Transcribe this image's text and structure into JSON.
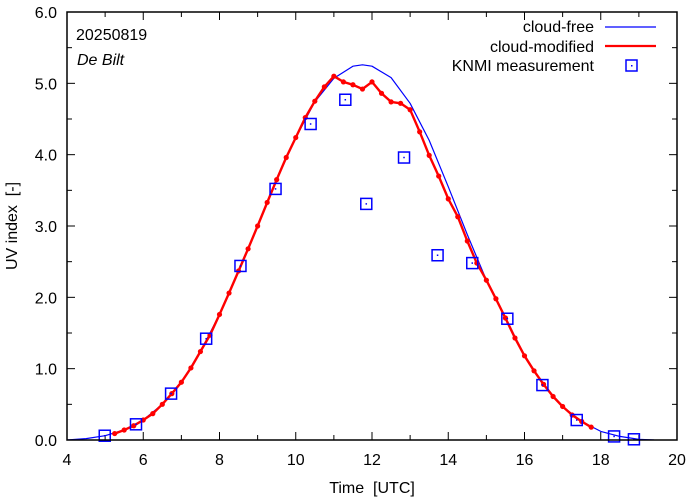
{
  "chart_data": {
    "type": "line",
    "title": "",
    "annotations": [
      "20250819",
      "De Bilt"
    ],
    "xlabel": "Time  [UTC]",
    "ylabel": "UV index  [-]",
    "xlim": [
      4,
      20
    ],
    "ylim": [
      0,
      6
    ],
    "xticks": [
      4,
      6,
      8,
      10,
      12,
      14,
      16,
      18,
      20
    ],
    "xtick_labels": [
      "4",
      "6",
      "8",
      "10",
      "12",
      "14",
      "16",
      "18",
      "20"
    ],
    "yticks": [
      0,
      1,
      2,
      3,
      4,
      5,
      6
    ],
    "ytick_labels": [
      "0.0",
      "1.0",
      "2.0",
      "3.0",
      "4.0",
      "5.0",
      "6.0"
    ],
    "grid": false,
    "legend_position": "top-right",
    "colors": {
      "cloud_free": "#0000ff",
      "cloud_modified": "#ff0000",
      "knmi": "#0000ff",
      "axis": "#000000"
    },
    "series": [
      {
        "name": "cloud-free",
        "style": "line",
        "x": [
          4.0,
          4.5,
          5.0,
          5.5,
          6.0,
          6.5,
          7.0,
          7.5,
          8.0,
          8.5,
          9.0,
          9.5,
          10.0,
          10.5,
          11.0,
          11.5,
          11.75,
          12.0,
          12.5,
          13.0,
          13.5,
          14.0,
          14.5,
          15.0,
          15.5,
          16.0,
          16.5,
          17.0,
          17.5,
          18.0,
          18.5,
          19.0,
          19.4
        ],
        "y": [
          0.0,
          0.02,
          0.06,
          0.14,
          0.28,
          0.5,
          0.81,
          1.24,
          1.76,
          2.37,
          3.0,
          3.65,
          4.24,
          4.74,
          5.07,
          5.24,
          5.26,
          5.24,
          5.08,
          4.72,
          4.2,
          3.55,
          2.88,
          2.24,
          1.72,
          1.18,
          0.78,
          0.47,
          0.26,
          0.12,
          0.05,
          0.01,
          0.0
        ]
      },
      {
        "name": "cloud-modified",
        "style": "line-with-points",
        "x": [
          5.25,
          5.5,
          5.75,
          6.0,
          6.25,
          6.5,
          6.75,
          7.0,
          7.25,
          7.5,
          7.75,
          8.0,
          8.25,
          8.5,
          8.75,
          9.0,
          9.25,
          9.5,
          9.75,
          10.0,
          10.25,
          10.5,
          10.75,
          11.0,
          11.25,
          11.5,
          11.75,
          12.0,
          12.25,
          12.5,
          12.75,
          13.0,
          13.25,
          13.5,
          13.75,
          14.0,
          14.25,
          14.5,
          14.75,
          15.0,
          15.25,
          15.5,
          15.75,
          16.0,
          16.25,
          16.5,
          16.75,
          17.0,
          17.25,
          17.5,
          17.75
        ],
        "y": [
          0.09,
          0.14,
          0.2,
          0.28,
          0.37,
          0.5,
          0.65,
          0.81,
          1.01,
          1.24,
          1.47,
          1.76,
          2.06,
          2.37,
          2.68,
          3.0,
          3.33,
          3.65,
          3.96,
          4.24,
          4.52,
          4.75,
          4.95,
          5.1,
          5.02,
          4.98,
          4.92,
          5.02,
          4.86,
          4.74,
          4.72,
          4.63,
          4.32,
          3.99,
          3.7,
          3.38,
          3.13,
          2.79,
          2.48,
          2.24,
          1.98,
          1.71,
          1.43,
          1.18,
          0.97,
          0.78,
          0.61,
          0.47,
          0.35,
          0.26,
          0.18
        ]
      },
      {
        "name": "KNMI measurement",
        "style": "points",
        "x": [
          4.99,
          5.81,
          6.73,
          7.65,
          8.55,
          9.47,
          10.39,
          11.3,
          11.85,
          12.84,
          13.72,
          14.63,
          15.55,
          16.47,
          17.37,
          18.35,
          18.87
        ],
        "y": [
          0.06,
          0.22,
          0.65,
          1.42,
          2.44,
          3.52,
          4.43,
          4.77,
          3.31,
          3.96,
          2.59,
          2.48,
          1.7,
          0.77,
          0.28,
          0.05,
          0.01
        ]
      }
    ]
  }
}
